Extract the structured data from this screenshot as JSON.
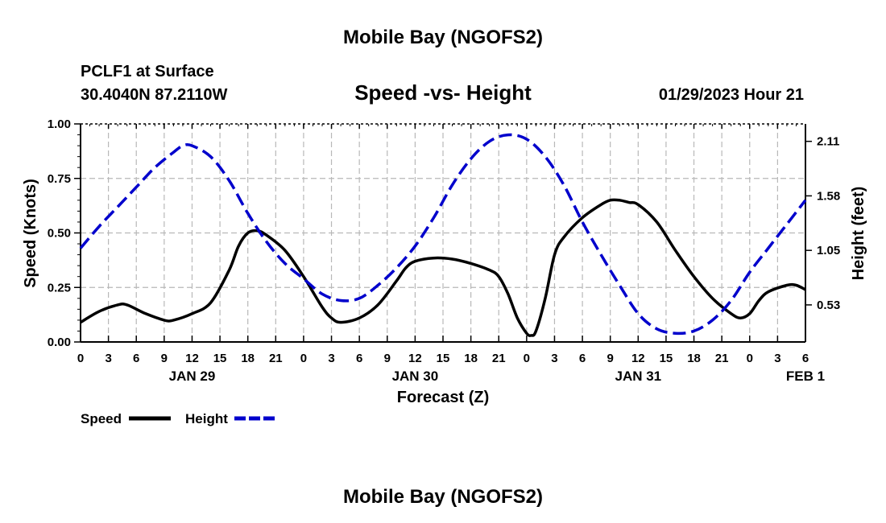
{
  "header": {
    "title_top": "Mobile Bay (NGOFS2)",
    "station": "PCLF1 at Surface",
    "coords": "30.4040N  87.2110W",
    "subtitle": "Speed -vs- Height",
    "datetime": "01/29/2023 Hour 21",
    "title_bottom": "Mobile Bay (NGOFS2)"
  },
  "legend": {
    "speed_label": "Speed",
    "height_label": "Height"
  },
  "chart_data": {
    "type": "line",
    "title": "Speed -vs- Height",
    "xlabel": "Forecast (Z)",
    "ylabel": "Speed (Knots)",
    "y2label": "Height (feet)",
    "x_range_hours": [
      0,
      78
    ],
    "x_tick_step_hours": 3,
    "x_tick_labels": [
      "0",
      "3",
      "6",
      "9",
      "12",
      "15",
      "18",
      "21",
      "0",
      "3",
      "6",
      "9",
      "12",
      "15",
      "18",
      "21",
      "0",
      "3",
      "6",
      "9",
      "12",
      "15",
      "18",
      "21",
      "0",
      "3",
      "6"
    ],
    "date_labels": [
      {
        "label": "JAN 29",
        "hour": 12
      },
      {
        "label": "JAN 30",
        "hour": 36
      },
      {
        "label": "JAN 31",
        "hour": 60
      },
      {
        "label": "FEB 1",
        "hour": 78
      }
    ],
    "ylim": [
      0,
      1.0
    ],
    "y_ticks": [
      "0.00",
      "0.25",
      "0.50",
      "0.75",
      "1.00"
    ],
    "y2_ticks": [
      {
        "label": "0.53",
        "speed_equiv": 0.17
      },
      {
        "label": "1.05",
        "speed_equiv": 0.42
      },
      {
        "label": "1.58",
        "speed_equiv": 0.67
      },
      {
        "label": "2.11",
        "speed_equiv": 0.92
      }
    ],
    "grid": true,
    "series": [
      {
        "name": "Speed",
        "color": "#000000",
        "style": "solid",
        "points": [
          [
            0,
            0.09
          ],
          [
            2,
            0.14
          ],
          [
            4,
            0.17
          ],
          [
            5,
            0.17
          ],
          [
            7,
            0.13
          ],
          [
            9,
            0.1
          ],
          [
            10,
            0.1
          ],
          [
            12,
            0.13
          ],
          [
            14,
            0.18
          ],
          [
            16,
            0.33
          ],
          [
            17,
            0.44
          ],
          [
            18,
            0.5
          ],
          [
            19,
            0.51
          ],
          [
            20,
            0.49
          ],
          [
            22,
            0.42
          ],
          [
            24,
            0.3
          ],
          [
            26,
            0.16
          ],
          [
            27,
            0.11
          ],
          [
            28,
            0.09
          ],
          [
            30,
            0.11
          ],
          [
            32,
            0.17
          ],
          [
            34,
            0.28
          ],
          [
            35,
            0.34
          ],
          [
            36,
            0.37
          ],
          [
            38,
            0.385
          ],
          [
            40,
            0.38
          ],
          [
            42,
            0.36
          ],
          [
            44,
            0.33
          ],
          [
            45,
            0.3
          ],
          [
            46,
            0.22
          ],
          [
            47,
            0.11
          ],
          [
            48,
            0.04
          ],
          [
            48.5,
            0.03
          ],
          [
            49,
            0.05
          ],
          [
            50,
            0.2
          ],
          [
            51,
            0.4
          ],
          [
            52,
            0.48
          ],
          [
            54,
            0.57
          ],
          [
            56,
            0.63
          ],
          [
            57,
            0.65
          ],
          [
            58,
            0.65
          ],
          [
            59,
            0.64
          ],
          [
            60,
            0.63
          ],
          [
            62,
            0.55
          ],
          [
            64,
            0.42
          ],
          [
            66,
            0.3
          ],
          [
            68,
            0.2
          ],
          [
            70,
            0.13
          ],
          [
            71,
            0.11
          ],
          [
            72,
            0.13
          ],
          [
            73,
            0.19
          ],
          [
            74,
            0.23
          ],
          [
            76,
            0.26
          ],
          [
            77,
            0.26
          ],
          [
            78,
            0.24
          ]
        ]
      },
      {
        "name": "Height",
        "color": "#0000cc",
        "style": "dashed",
        "points": [
          [
            0,
            0.43
          ],
          [
            2,
            0.53
          ],
          [
            4,
            0.62
          ],
          [
            6,
            0.71
          ],
          [
            8,
            0.8
          ],
          [
            10,
            0.87
          ],
          [
            11,
            0.9
          ],
          [
            12,
            0.9
          ],
          [
            14,
            0.85
          ],
          [
            16,
            0.74
          ],
          [
            18,
            0.59
          ],
          [
            20,
            0.46
          ],
          [
            22,
            0.36
          ],
          [
            24,
            0.29
          ],
          [
            26,
            0.22
          ],
          [
            28,
            0.19
          ],
          [
            30,
            0.2
          ],
          [
            32,
            0.26
          ],
          [
            34,
            0.34
          ],
          [
            36,
            0.44
          ],
          [
            38,
            0.57
          ],
          [
            40,
            0.72
          ],
          [
            42,
            0.84
          ],
          [
            44,
            0.92
          ],
          [
            46,
            0.95
          ],
          [
            48,
            0.93
          ],
          [
            50,
            0.85
          ],
          [
            52,
            0.72
          ],
          [
            54,
            0.55
          ],
          [
            56,
            0.4
          ],
          [
            58,
            0.26
          ],
          [
            60,
            0.13
          ],
          [
            62,
            0.06
          ],
          [
            64,
            0.04
          ],
          [
            66,
            0.05
          ],
          [
            68,
            0.1
          ],
          [
            70,
            0.19
          ],
          [
            72,
            0.32
          ],
          [
            74,
            0.43
          ],
          [
            76,
            0.54
          ],
          [
            78,
            0.65
          ]
        ]
      }
    ]
  }
}
